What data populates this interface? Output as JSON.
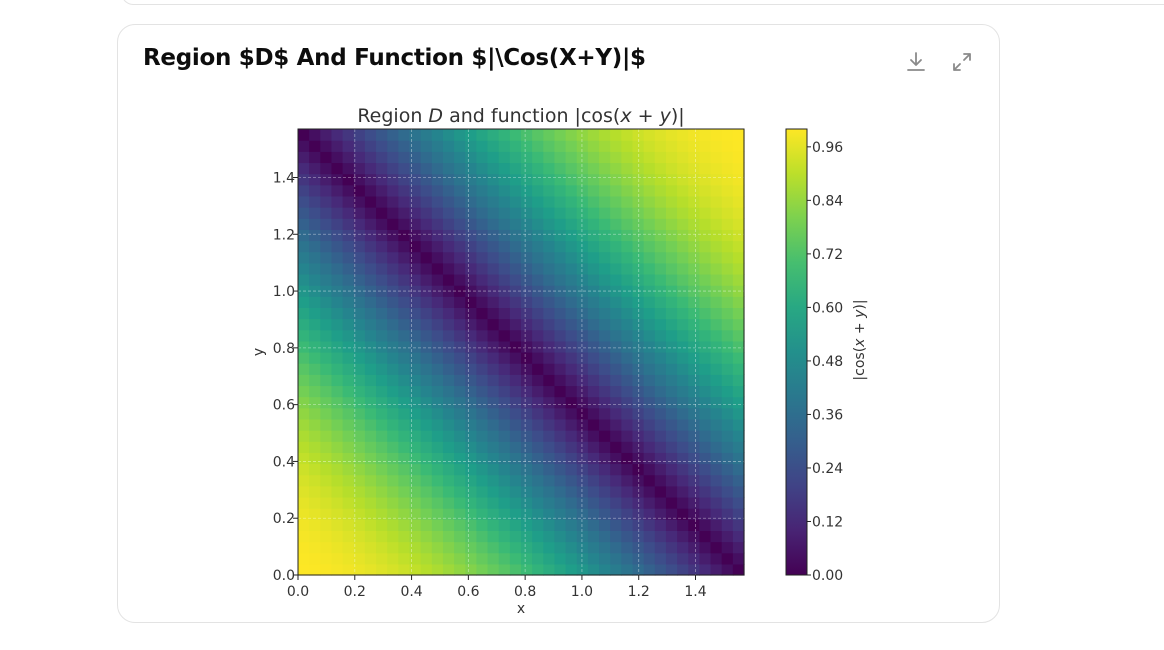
{
  "card": {
    "title": "Region $D$ And Function $|\\Cos(X+Y)|$",
    "download_icon": "download-icon",
    "expand_icon": "expand-icon"
  },
  "chart_data": {
    "type": "heatmap",
    "title": "Region D and function |cos(x + y)|",
    "title_parts": [
      "Region ",
      "D",
      " and function |cos(",
      "x",
      " + ",
      "y",
      ")|"
    ],
    "function": "|cos(x+y)|",
    "xlabel": "x",
    "ylabel": "y",
    "xlim": [
      0,
      1.5708
    ],
    "ylim": [
      0,
      1.5708
    ],
    "x_ticks": [
      0.0,
      0.2,
      0.4,
      0.6,
      0.8,
      1.0,
      1.2,
      1.4
    ],
    "x_tick_labels": [
      "0.0",
      "0.2",
      "0.4",
      "0.6",
      "0.8",
      "1.0",
      "1.2",
      "1.4"
    ],
    "y_ticks": [
      0.0,
      0.2,
      0.4,
      0.6,
      0.8,
      1.0,
      1.2,
      1.4
    ],
    "y_tick_labels": [
      "0.0",
      "0.2",
      "0.4",
      "0.6",
      "0.8",
      "1.0",
      "1.2",
      "1.4"
    ],
    "grid": true,
    "colormap": "viridis",
    "colorbar": {
      "label_parts": [
        "|cos(",
        "x",
        " + ",
        "y",
        ")|"
      ],
      "range": [
        0,
        1
      ],
      "ticks": [
        0.0,
        0.12,
        0.24,
        0.36,
        0.48,
        0.6,
        0.72,
        0.84,
        0.96
      ],
      "tick_labels": [
        "0.00",
        "0.12",
        "0.24",
        "0.36",
        "0.48",
        "0.60",
        "0.72",
        "0.84",
        "0.96"
      ]
    }
  }
}
